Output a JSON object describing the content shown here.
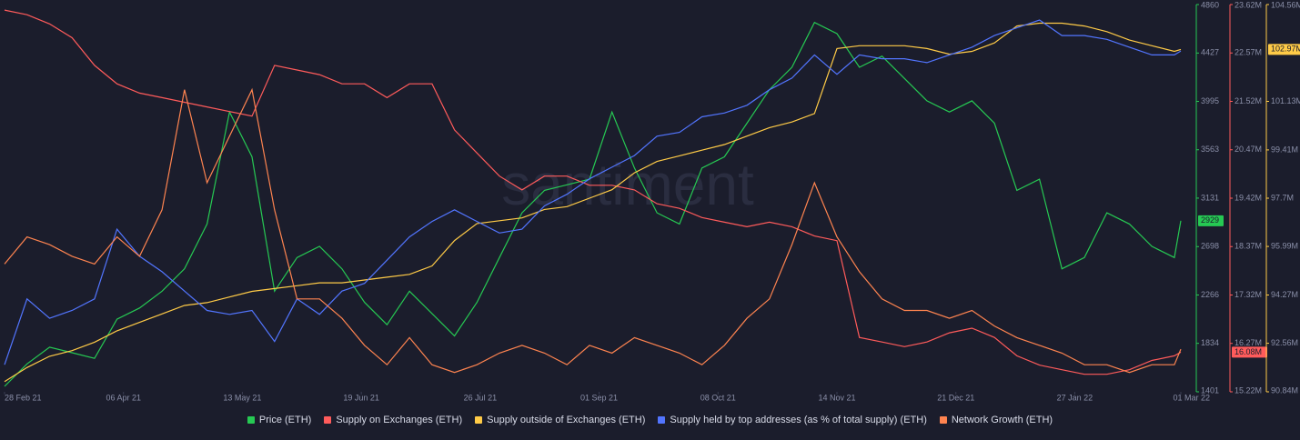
{
  "chart_data": {
    "type": "line",
    "watermark": "santiment",
    "x": [
      "2021-02-28",
      "2021-03-07",
      "2021-03-14",
      "2021-03-21",
      "2021-03-28",
      "2021-04-04",
      "2021-04-11",
      "2021-04-18",
      "2021-04-25",
      "2021-05-02",
      "2021-05-09",
      "2021-05-16",
      "2021-05-23",
      "2021-05-30",
      "2021-06-06",
      "2021-06-13",
      "2021-06-20",
      "2021-06-27",
      "2021-07-04",
      "2021-07-11",
      "2021-07-18",
      "2021-07-25",
      "2021-08-01",
      "2021-08-08",
      "2021-08-15",
      "2021-08-22",
      "2021-08-29",
      "2021-09-05",
      "2021-09-12",
      "2021-09-19",
      "2021-09-26",
      "2021-10-03",
      "2021-10-10",
      "2021-10-17",
      "2021-10-24",
      "2021-10-31",
      "2021-11-07",
      "2021-11-14",
      "2021-11-21",
      "2021-11-28",
      "2021-12-05",
      "2021-12-12",
      "2021-12-19",
      "2021-12-26",
      "2022-01-02",
      "2022-01-09",
      "2022-01-16",
      "2022-01-23",
      "2022-01-30",
      "2022-02-06",
      "2022-02-13",
      "2022-02-20",
      "2022-02-27",
      "2022-03-01"
    ],
    "xlim": [
      "2021-02-28",
      "2022-03-01"
    ],
    "xticks": [
      {
        "value": "2021-02-28",
        "label": "28 Feb 21"
      },
      {
        "value": "2021-04-06",
        "label": "06 Apr 21"
      },
      {
        "value": "2021-05-13",
        "label": "13 May 21"
      },
      {
        "value": "2021-06-19",
        "label": "19 Jun 21"
      },
      {
        "value": "2021-07-26",
        "label": "26 Jul 21"
      },
      {
        "value": "2021-09-01",
        "label": "01 Sep 21"
      },
      {
        "value": "2021-10-08",
        "label": "08 Oct 21"
      },
      {
        "value": "2021-11-14",
        "label": "14 Nov 21"
      },
      {
        "value": "2021-12-21",
        "label": "21 Dec 21"
      },
      {
        "value": "2022-01-27",
        "label": "27 Jan 22"
      },
      {
        "value": "2022-03-01",
        "label": "01 Mar 22"
      }
    ],
    "series": [
      {
        "name": "Price (ETH)",
        "color": "#26c953",
        "ylim": [
          1401,
          4860
        ],
        "yticks": [
          4860,
          4427,
          3995,
          3563,
          3131,
          2698,
          2266,
          1834,
          1401
        ],
        "last_label": "2929",
        "values": [
          1450,
          1650,
          1800,
          1750,
          1700,
          2050,
          2150,
          2300,
          2500,
          2900,
          3900,
          3500,
          2300,
          2600,
          2700,
          2500,
          2200,
          2000,
          2300,
          2100,
          1900,
          2200,
          2600,
          3000,
          3200,
          3250,
          3300,
          3900,
          3400,
          3000,
          2900,
          3400,
          3500,
          3800,
          4100,
          4300,
          4700,
          4600,
          4300,
          4400,
          4200,
          4000,
          3900,
          4000,
          3800,
          3200,
          3300,
          2500,
          2600,
          3000,
          2900,
          2700,
          2600,
          2929
        ]
      },
      {
        "name": "Supply on Exchanges (ETH)",
        "color": "#ff5b5b",
        "ylim": [
          15220000,
          23620000
        ],
        "yticks": [
          {
            "value": 23620000,
            "label": "23.62M"
          },
          {
            "value": 22570000,
            "label": "22.57M"
          },
          {
            "value": 21520000,
            "label": "21.52M"
          },
          {
            "value": 20470000,
            "label": "20.47M"
          },
          {
            "value": 19420000,
            "label": "19.42M"
          },
          {
            "value": 18370000,
            "label": "18.37M"
          },
          {
            "value": 17320000,
            "label": "17.32M"
          },
          {
            "value": 16270000,
            "label": "16.27M"
          },
          {
            "value": 15220000,
            "label": "15.22M"
          }
        ],
        "last_label": "16.08M",
        "values": [
          23500000,
          23400000,
          23200000,
          22900000,
          22300000,
          21900000,
          21700000,
          21600000,
          21500000,
          21400000,
          21300000,
          21200000,
          22300000,
          22200000,
          22100000,
          21900000,
          21900000,
          21600000,
          21900000,
          21900000,
          20900000,
          20400000,
          19900000,
          19600000,
          19900000,
          19900000,
          19700000,
          19700000,
          19600000,
          19300000,
          19200000,
          19000000,
          18900000,
          18800000,
          18900000,
          18800000,
          18600000,
          18500000,
          16400000,
          16300000,
          16200000,
          16300000,
          16500000,
          16600000,
          16400000,
          16000000,
          15800000,
          15700000,
          15600000,
          15600000,
          15700000,
          15900000,
          16000000,
          16080000
        ]
      },
      {
        "name": "Supply outside of Exchanges (ETH)",
        "color": "#ffcb47",
        "ylim": [
          90840000,
          104560000
        ],
        "yticks": [
          {
            "value": 104560000,
            "label": "104.56M"
          },
          {
            "value": 101130000,
            "label": "101.13M"
          },
          {
            "value": 99410000,
            "label": "99.41M"
          },
          {
            "value": 97700000,
            "label": "97.7M"
          },
          {
            "value": 95990000,
            "label": "95.99M"
          },
          {
            "value": 94270000,
            "label": "94.27M"
          },
          {
            "value": 92560000,
            "label": "92.56M"
          },
          {
            "value": 90840000,
            "label": "90.84M"
          }
        ],
        "last_label": "102.97M",
        "values": [
          91200000,
          91700000,
          92100000,
          92300000,
          92600000,
          93000000,
          93300000,
          93600000,
          93900000,
          94000000,
          94200000,
          94400000,
          94500000,
          94600000,
          94700000,
          94700000,
          94800000,
          94900000,
          95000000,
          95300000,
          96200000,
          96800000,
          96900000,
          97000000,
          97300000,
          97400000,
          97700000,
          98000000,
          98600000,
          99000000,
          99200000,
          99400000,
          99600000,
          99900000,
          100200000,
          100400000,
          100700000,
          103000000,
          103100000,
          103100000,
          103100000,
          103000000,
          102800000,
          102900000,
          103200000,
          103800000,
          103900000,
          103900000,
          103800000,
          103600000,
          103300000,
          103100000,
          102900000,
          102970000
        ]
      },
      {
        "name": "Supply held by top addresses (as % of total supply) (ETH)",
        "color": "#5275ff",
        "ylim": [
          0,
          100
        ],
        "values": [
          7,
          24,
          19,
          21,
          24,
          42,
          35,
          31,
          26,
          21,
          20,
          21,
          13,
          24,
          20,
          26,
          28,
          34,
          40,
          44,
          47,
          44,
          41,
          42,
          48,
          51,
          55,
          58,
          61,
          66,
          67,
          71,
          72,
          74,
          78,
          81,
          87,
          82,
          87,
          86,
          86,
          85,
          87,
          89,
          92,
          94,
          96,
          92,
          92,
          91,
          89,
          87,
          87,
          88
        ]
      },
      {
        "name": "Network Growth (ETH)",
        "color": "#ff8450",
        "ylim": [
          0,
          100
        ],
        "values": [
          33,
          40,
          38,
          35,
          33,
          40,
          35,
          47,
          78,
          54,
          66,
          78,
          47,
          24,
          24,
          19,
          12,
          7,
          14,
          7,
          5,
          7,
          10,
          12,
          10,
          7,
          12,
          10,
          14,
          12,
          10,
          7,
          12,
          19,
          24,
          38,
          54,
          40,
          31,
          24,
          21,
          21,
          19,
          21,
          17,
          14,
          12,
          10,
          7,
          7,
          5,
          7,
          7,
          11
        ]
      }
    ]
  }
}
